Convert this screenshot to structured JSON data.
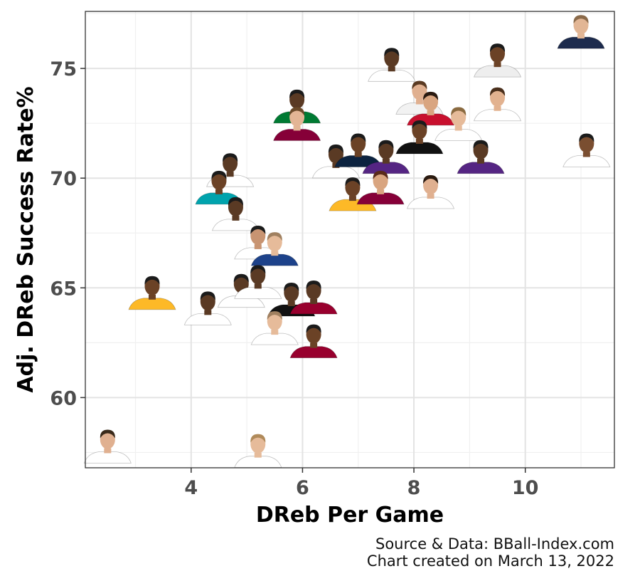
{
  "chart_data": {
    "type": "scatter",
    "xlabel": "DReb Per Game",
    "ylabel": "Adj. DReb Success Rate%",
    "xlim": [
      2.1,
      11.6
    ],
    "ylim": [
      56.8,
      77.6
    ],
    "x_ticks": [
      4,
      6,
      8,
      10
    ],
    "y_ticks": [
      60,
      65,
      70,
      75
    ],
    "grid": true,
    "legend": "none",
    "marker": "player-headshot",
    "points": [
      {
        "x": 11.0,
        "y": 76.3,
        "jersey": "#1d2b4d",
        "skin": "#e2b695",
        "hair": "#8a6a4a"
      },
      {
        "x": 9.5,
        "y": 75.0,
        "jersey": "#eeeeee",
        "skin": "#6b4226",
        "hair": "#1b1b1b"
      },
      {
        "x": 7.6,
        "y": 74.8,
        "jersey": "#ffffff",
        "skin": "#5a3a24",
        "hair": "#1b1b1b"
      },
      {
        "x": 8.1,
        "y": 73.3,
        "jersey": "#f2f2f2",
        "skin": "#e0b090",
        "hair": "#5a3a22"
      },
      {
        "x": 8.3,
        "y": 72.8,
        "jersey": "#c8102e",
        "skin": "#d9a580",
        "hair": "#2a1a10"
      },
      {
        "x": 9.5,
        "y": 73.0,
        "jersey": "#ffffff",
        "skin": "#e2b290",
        "hair": "#4a2f1c"
      },
      {
        "x": 5.9,
        "y": 72.9,
        "jersey": "#007a33",
        "skin": "#5a3a24",
        "hair": "#1b1b1b"
      },
      {
        "x": 5.9,
        "y": 72.1,
        "jersey": "#860038",
        "skin": "#e3b595",
        "hair": "#6b4a2a"
      },
      {
        "x": 8.8,
        "y": 72.1,
        "jersey": "#ffffff",
        "skin": "#e6bb9a",
        "hair": "#8a6a40"
      },
      {
        "x": 8.1,
        "y": 71.5,
        "jersey": "#111111",
        "skin": "#6b4226",
        "hair": "#1b1b1b"
      },
      {
        "x": 6.6,
        "y": 70.4,
        "jersey": "#ffffff",
        "skin": "#5a3a24",
        "hair": "#1b1b1b"
      },
      {
        "x": 7.0,
        "y": 70.9,
        "jersey": "#0c2340",
        "skin": "#6b4226",
        "hair": "#1b1b1b"
      },
      {
        "x": 7.5,
        "y": 70.6,
        "jersey": "#552583",
        "skin": "#5a3a24",
        "hair": "#1b1b1b"
      },
      {
        "x": 9.2,
        "y": 70.6,
        "jersey": "#552583",
        "skin": "#5a3a24",
        "hair": "#1b1b1b"
      },
      {
        "x": 11.1,
        "y": 70.9,
        "jersey": "#ffffff",
        "skin": "#7a4e30",
        "hair": "#1b1b1b"
      },
      {
        "x": 4.7,
        "y": 70.0,
        "jersey": "#ffffff",
        "skin": "#5a3a24",
        "hair": "#1b1b1b"
      },
      {
        "x": 4.5,
        "y": 69.2,
        "jersey": "#00a3ad",
        "skin": "#6b4226",
        "hair": "#1b1b1b"
      },
      {
        "x": 6.9,
        "y": 68.9,
        "jersey": "#fdb927",
        "skin": "#6b4226",
        "hair": "#1b1b1b"
      },
      {
        "x": 7.4,
        "y": 69.2,
        "jersey": "#860038",
        "skin": "#d9a580",
        "hair": "#5a2a1a"
      },
      {
        "x": 8.3,
        "y": 69.0,
        "jersey": "#ffffff",
        "skin": "#e0b090",
        "hair": "#2a1a10"
      },
      {
        "x": 4.8,
        "y": 68.0,
        "jersey": "#ffffff",
        "skin": "#5a3a24",
        "hair": "#1b1b1b"
      },
      {
        "x": 5.2,
        "y": 66.7,
        "jersey": "#ffffff",
        "skin": "#c89472",
        "hair": "#1b1b1b"
      },
      {
        "x": 5.5,
        "y": 66.4,
        "jersey": "#1d428a",
        "skin": "#e6bb9a",
        "hair": "#a08060"
      },
      {
        "x": 3.3,
        "y": 64.4,
        "jersey": "#fdb927",
        "skin": "#6b4226",
        "hair": "#1b1b1b"
      },
      {
        "x": 4.9,
        "y": 64.5,
        "jersey": "#ffffff",
        "skin": "#5a3a24",
        "hair": "#1b1b1b"
      },
      {
        "x": 5.2,
        "y": 64.9,
        "jersey": "#ffffff",
        "skin": "#5a3a24",
        "hair": "#1b1b1b"
      },
      {
        "x": 4.3,
        "y": 63.7,
        "jersey": "#ffffff",
        "skin": "#5a3a24",
        "hair": "#1b1b1b"
      },
      {
        "x": 5.8,
        "y": 64.1,
        "jersey": "#111111",
        "skin": "#5a3a24",
        "hair": "#1b1b1b"
      },
      {
        "x": 6.2,
        "y": 64.2,
        "jersey": "#98002e",
        "skin": "#5a3a24",
        "hair": "#1b1b1b"
      },
      {
        "x": 5.5,
        "y": 62.8,
        "jersey": "#ffffff",
        "skin": "#e6bb9a",
        "hair": "#a08060"
      },
      {
        "x": 6.2,
        "y": 62.2,
        "jersey": "#98002e",
        "skin": "#6b4226",
        "hair": "#1b1b1b"
      },
      {
        "x": 2.5,
        "y": 57.4,
        "jersey": "#ffffff",
        "skin": "#e0b090",
        "hair": "#3a2a1a"
      },
      {
        "x": 5.2,
        "y": 57.2,
        "jersey": "#ffffff",
        "skin": "#e6bb9a",
        "hair": "#b08a5a"
      }
    ]
  },
  "caption": {
    "line1": "Source & Data: BBall-Index.com",
    "line2": "Chart created on March 13, 2022"
  }
}
